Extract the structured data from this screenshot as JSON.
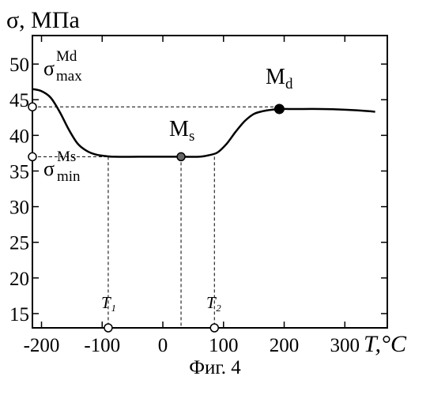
{
  "chart_data": {
    "type": "line",
    "title": "σ, МПа",
    "xlabel": "T,°C",
    "ylabel": "σ, МПа",
    "xlim": [
      -215,
      370
    ],
    "ylim": [
      13,
      54
    ],
    "x_ticks": [
      -200,
      -100,
      0,
      100,
      200,
      300
    ],
    "y_ticks": [
      15,
      20,
      25,
      30,
      35,
      40,
      45,
      50
    ],
    "x_tick_labels": [
      "-200",
      "-100",
      "0",
      "100",
      "200",
      "300"
    ],
    "y_tick_labels": [
      "15",
      "20",
      "25",
      "30",
      "35",
      "40",
      "45",
      "50"
    ],
    "grid": false,
    "series": [
      {
        "x": [
          -215,
          -200,
          -185,
          -170,
          -155,
          -140,
          -125,
          -110,
          -95,
          -80,
          -40,
          0,
          30,
          60,
          75,
          90,
          105,
          120,
          135,
          150,
          165,
          180,
          192,
          220,
          260,
          300,
          340,
          350
        ],
        "y": [
          46.5,
          46.2,
          45.3,
          43.3,
          40.8,
          38.8,
          37.8,
          37.3,
          37.1,
          37.0,
          37.0,
          37.0,
          37.0,
          37.0,
          37.2,
          37.6,
          38.8,
          40.5,
          42.0,
          43.0,
          43.4,
          43.6,
          43.7,
          43.7,
          43.7,
          43.6,
          43.4,
          43.3
        ]
      }
    ],
    "points": [
      {
        "label": "M_d",
        "x": 192,
        "y": 43.7
      },
      {
        "label": "M_s",
        "x": 30,
        "y": 37.0
      }
    ],
    "reference_lines": [
      {
        "label": "σ_max^Md",
        "y": 44.0
      },
      {
        "label": "σ_min^Ms",
        "y": 37.0
      },
      {
        "label": "T₁",
        "x": -90
      },
      {
        "label": "T₂",
        "x": 85
      },
      {
        "label": "",
        "x": 30
      }
    ],
    "annotations": {
      "sigma_symbol": "σ",
      "max_sup": "Md",
      "max_sub": "max",
      "min_sup": "Ms",
      "min_sub": "min",
      "md_main": "M",
      "md_sub": "d",
      "ms_main": "M",
      "ms_sub": "s",
      "t1": "T₁",
      "t2": "T₂"
    }
  },
  "caption": "Фиг. 4"
}
